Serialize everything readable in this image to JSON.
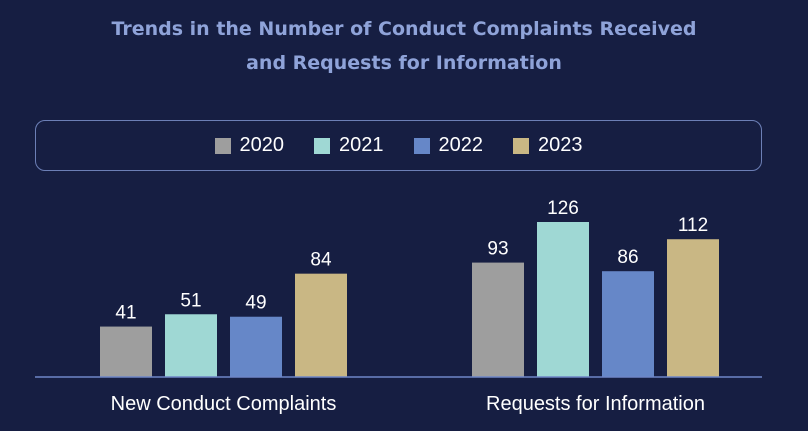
{
  "chart_data": {
    "type": "bar",
    "title_lines": [
      "Trends in the Number of Conduct Complaints Received",
      "and Requests for Information"
    ],
    "categories": [
      "New Conduct Complaints",
      "Requests for Information"
    ],
    "series": [
      {
        "name": "2020",
        "color": "#9e9e9e",
        "values": [
          41,
          93
        ]
      },
      {
        "name": "2021",
        "color": "#9fd8d4",
        "values": [
          51,
          126
        ]
      },
      {
        "name": "2022",
        "color": "#6687c8",
        "values": [
          49,
          86
        ]
      },
      {
        "name": "2023",
        "color": "#c9b784",
        "values": [
          84,
          112
        ]
      }
    ],
    "legend_position": "top",
    "grid": false,
    "data_labels": true,
    "ylim": [
      0,
      126
    ]
  }
}
